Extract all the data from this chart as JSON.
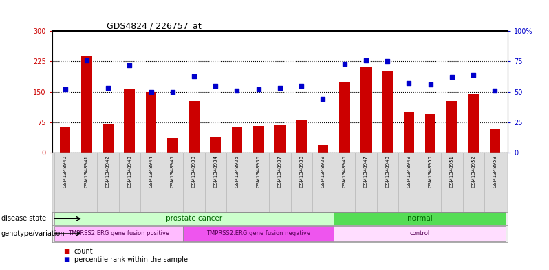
{
  "title": "GDS4824 / 226757_at",
  "samples": [
    "GSM1348940",
    "GSM1348941",
    "GSM1348942",
    "GSM1348943",
    "GSM1348944",
    "GSM1348945",
    "GSM1348933",
    "GSM1348934",
    "GSM1348935",
    "GSM1348936",
    "GSM1348937",
    "GSM1348938",
    "GSM1348939",
    "GSM1348946",
    "GSM1348947",
    "GSM1348948",
    "GSM1348949",
    "GSM1348950",
    "GSM1348951",
    "GSM1348952",
    "GSM1348953"
  ],
  "counts": [
    62,
    240,
    70,
    157,
    150,
    35,
    128,
    38,
    62,
    65,
    68,
    80,
    18,
    175,
    210,
    200,
    100,
    95,
    128,
    145,
    58
  ],
  "percentiles": [
    52,
    76,
    53,
    72,
    50,
    50,
    63,
    55,
    51,
    52,
    53,
    55,
    44,
    73,
    76,
    75,
    57,
    56,
    62,
    64,
    51
  ],
  "bar_color": "#cc0000",
  "dot_color": "#0000cc",
  "left_yaxis_color": "#cc0000",
  "right_yaxis_color": "#0000cc",
  "ylim_left": [
    0,
    300
  ],
  "ylim_right": [
    0,
    100
  ],
  "yticks_left": [
    0,
    75,
    150,
    225,
    300
  ],
  "yticks_right": [
    0,
    25,
    50,
    75,
    100
  ],
  "ytick_labels_left": [
    "0",
    "75",
    "150",
    "225",
    "300"
  ],
  "ytick_labels_right": [
    "0",
    "25",
    "50",
    "75",
    "100%"
  ],
  "disease_state_groups": [
    {
      "label": "prostate cancer",
      "start": 0,
      "end": 13,
      "color": "#ccffcc"
    },
    {
      "label": "normal",
      "start": 13,
      "end": 21,
      "color": "#55dd55"
    }
  ],
  "genotype_groups": [
    {
      "label": "TMPRSS2:ERG gene fusion positive",
      "start": 0,
      "end": 6,
      "color": "#ffbbff"
    },
    {
      "label": "TMPRSS2:ERG gene fusion negative",
      "start": 6,
      "end": 13,
      "color": "#ee55ee"
    },
    {
      "label": "control",
      "start": 13,
      "end": 21,
      "color": "#ffddff"
    }
  ],
  "row_label_disease": "disease state",
  "row_label_genotype": "genotype/variation",
  "legend_count": "count",
  "legend_percentile": "percentile rank within the sample",
  "bg_color": "#ffffff",
  "plot_bg": "#ffffff",
  "grid_color": "#000000",
  "bar_width": 0.5,
  "xlabel_bg": "#dddddd"
}
